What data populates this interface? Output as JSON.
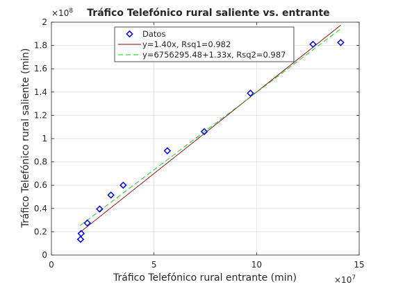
{
  "chart_data": {
    "type": "scatter",
    "title": "Tráfico Telefónico rural saliente vs. entrante",
    "xlabel": "Tráfico Telefónico rural entrante (min)",
    "ylabel": "Tráfico Telefónico rural saliente (min)",
    "x_exponent": "×10",
    "x_exponent_power": "7",
    "y_exponent": "×10",
    "y_exponent_power": "8",
    "xlim": [
      0,
      15
    ],
    "ylim": [
      0,
      2
    ],
    "xticks": [
      0,
      5,
      10,
      15
    ],
    "xtick_labels": [
      "0",
      "5",
      "10",
      "15"
    ],
    "yticks": [
      0,
      0.2,
      0.4,
      0.6,
      0.8,
      1,
      1.2,
      1.4,
      1.6,
      1.8,
      2
    ],
    "ytick_labels": [
      "0",
      "0.2",
      "0.4",
      "0.6",
      "0.8",
      "1",
      "1.2",
      "1.4",
      "1.6",
      "1.8",
      "2"
    ],
    "grid": true,
    "legend_position": "top-center",
    "legend": [
      "Datos",
      "y=1.40x, Rsq1=0.982",
      "y=6756295.48+1.33x, Rsq2=0.987"
    ],
    "series": [
      {
        "name": "Datos",
        "kind": "scatter",
        "marker": "diamond",
        "color": "#0000ff",
        "x": [
          1.42,
          1.45,
          1.75,
          2.35,
          2.9,
          3.5,
          5.65,
          7.45,
          9.7,
          12.75,
          14.1
        ],
        "y": [
          0.135,
          0.185,
          0.275,
          0.395,
          0.515,
          0.6,
          0.895,
          1.06,
          1.39,
          1.81,
          1.825
        ]
      },
      {
        "name": "y=1.40x, Rsq1=0.982",
        "kind": "line",
        "style": "solid",
        "color": "#8b0000",
        "x": [
          1.4,
          14.1
        ],
        "y": [
          0.196,
          1.974
        ]
      },
      {
        "name": "y=6756295.48+1.33x, Rsq2=0.987",
        "kind": "line",
        "style": "dashed",
        "color": "#00cc00",
        "x": [
          1.4,
          14.1
        ],
        "y": [
          0.2538,
          1.9429
        ]
      }
    ]
  }
}
